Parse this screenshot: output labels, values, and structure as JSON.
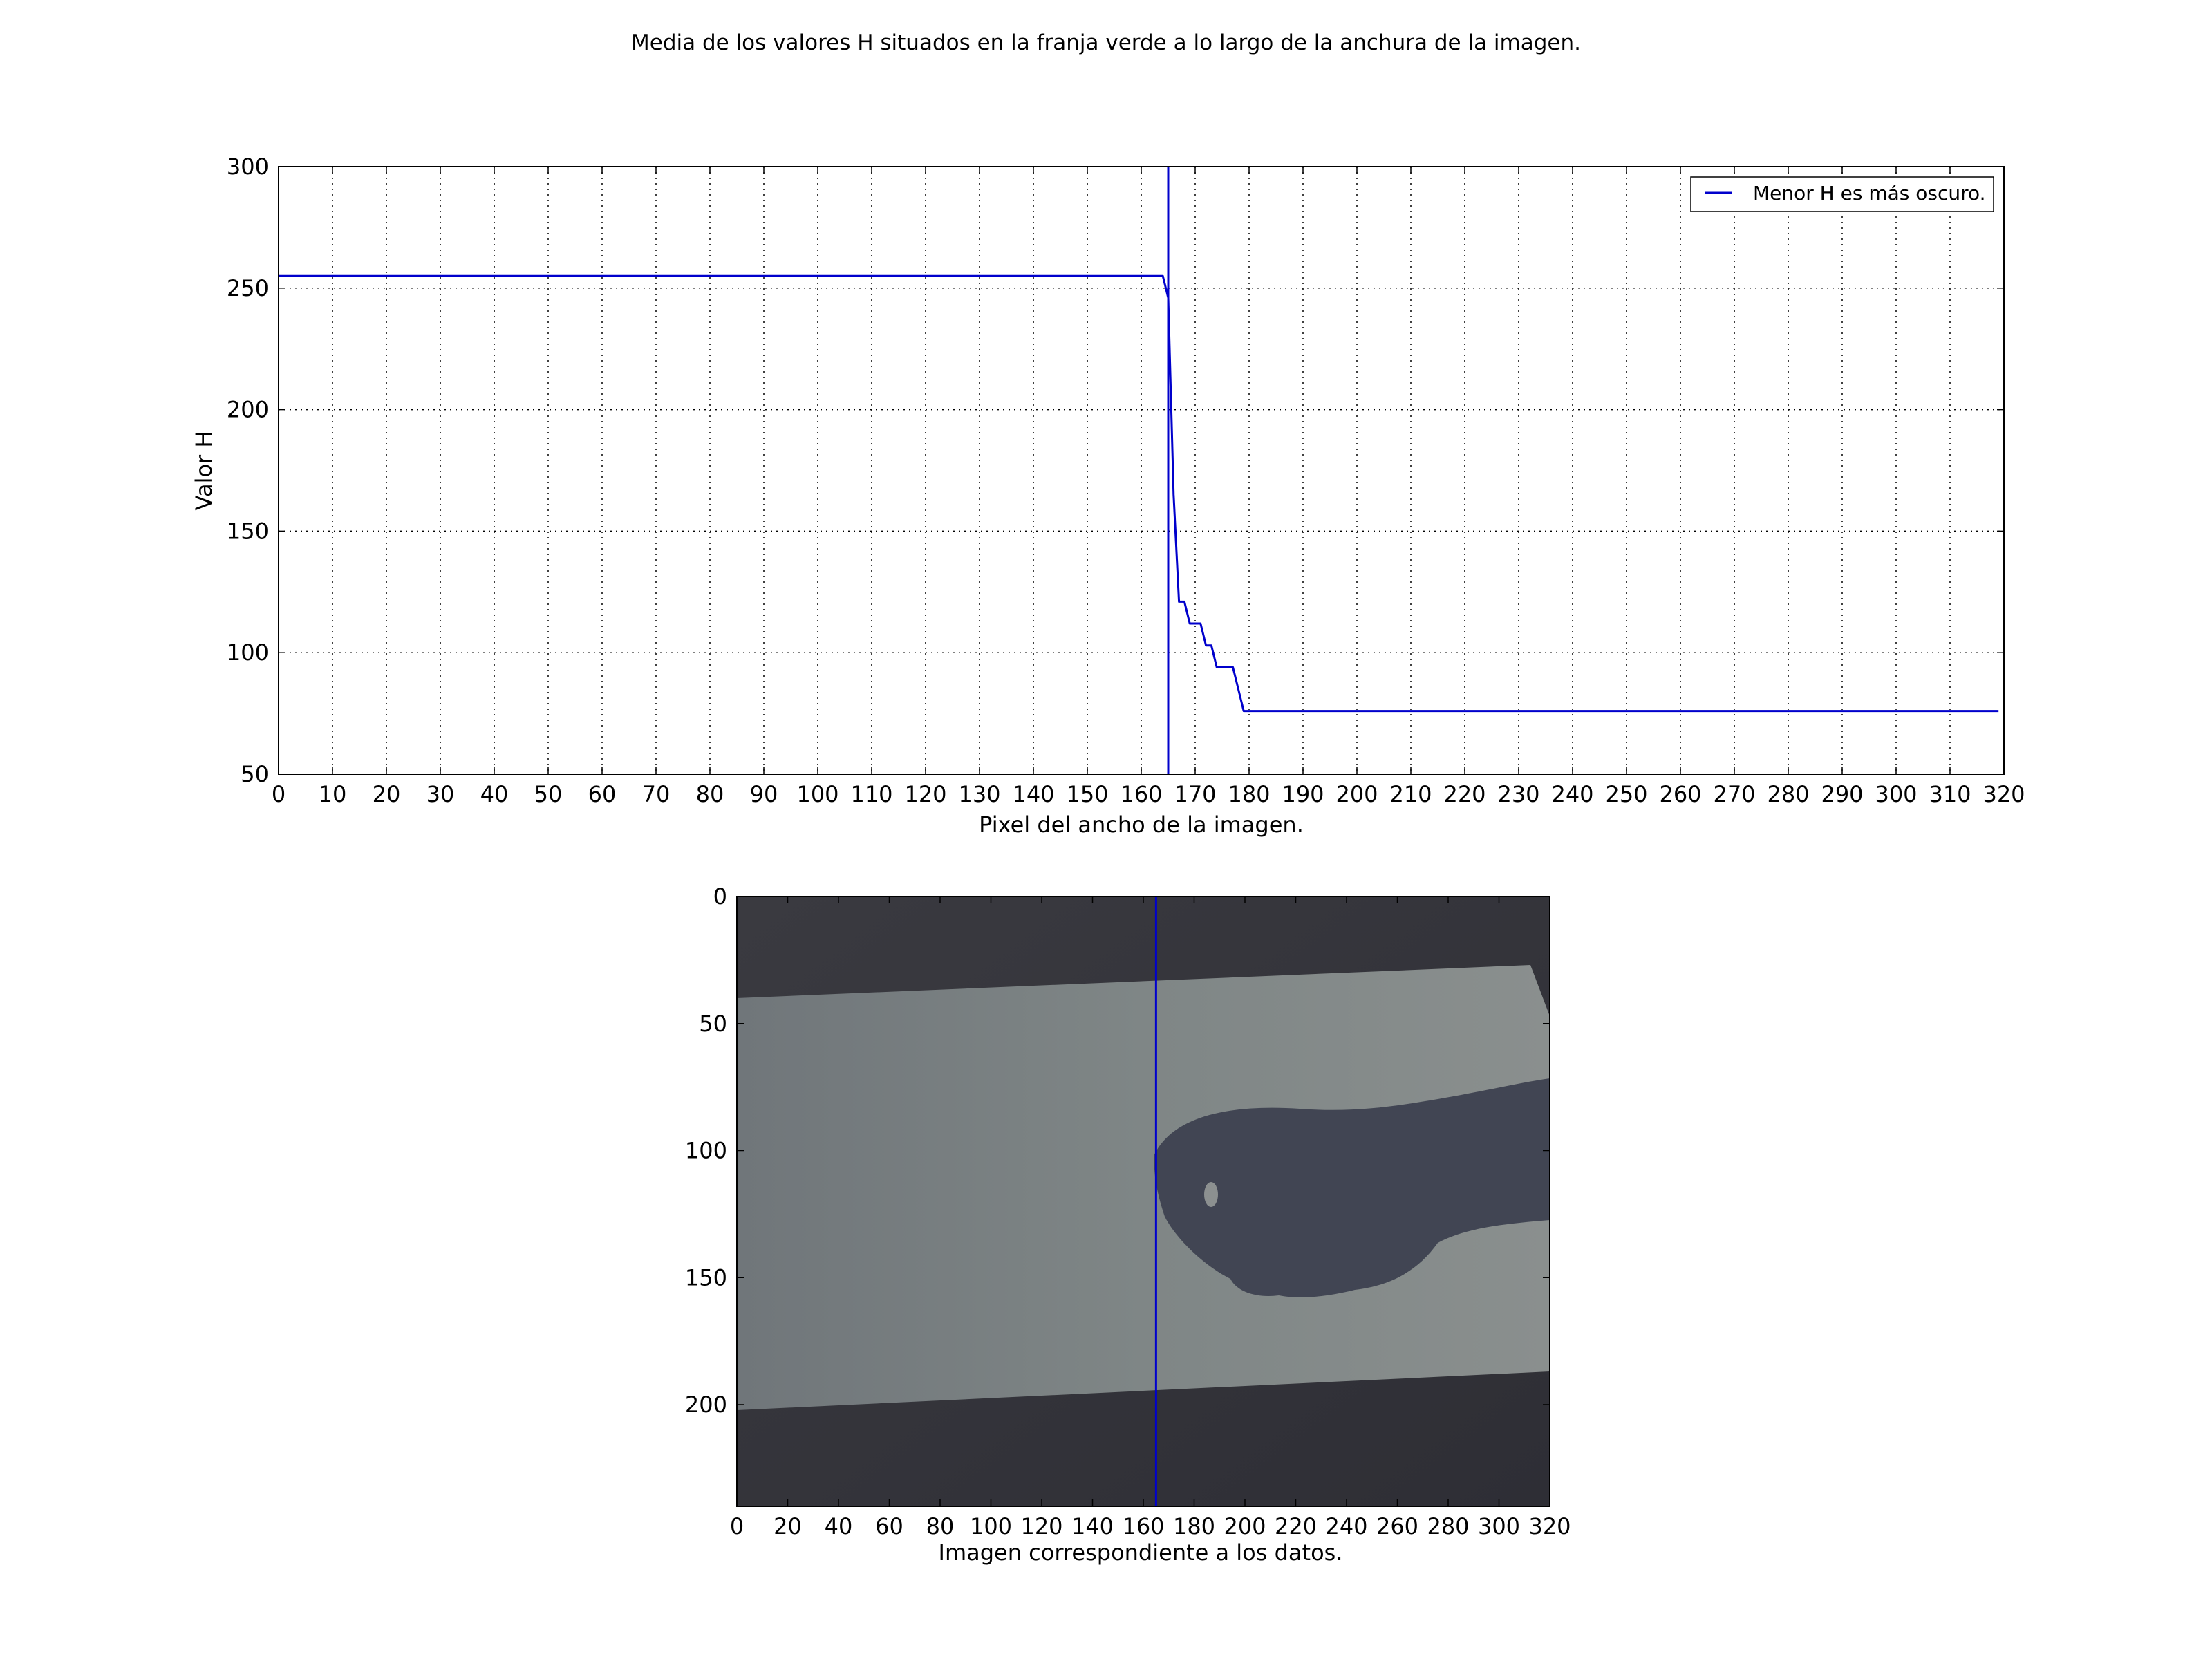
{
  "figure": {
    "title": "Media de los valores H situados en la franja verde a lo largo de la anchura de la imagen."
  },
  "chart_data": [
    {
      "type": "line",
      "xlabel": "Pixel del ancho de la imagen.",
      "ylabel": "Valor H",
      "xlim": [
        0,
        320
      ],
      "ylim": [
        50,
        300
      ],
      "xticks": [
        0,
        10,
        20,
        30,
        40,
        50,
        60,
        70,
        80,
        90,
        100,
        110,
        120,
        130,
        140,
        150,
        160,
        170,
        180,
        190,
        200,
        210,
        220,
        230,
        240,
        250,
        260,
        270,
        280,
        290,
        300,
        310,
        320
      ],
      "yticks": [
        50,
        100,
        150,
        200,
        250,
        300
      ],
      "grid": true,
      "legend_position": "top-right",
      "marker_x": 165,
      "series": [
        {
          "name": "Menor H es más oscuro.",
          "color": "#0000cc",
          "x": [
            0,
            164,
            165,
            166,
            167,
            168,
            169,
            170,
            171,
            172,
            173,
            174,
            175,
            176,
            177,
            178,
            179,
            180,
            250,
            319
          ],
          "y": [
            255,
            255,
            246,
            165,
            121,
            121,
            112,
            112,
            112,
            103,
            103,
            94,
            94,
            94,
            94,
            85,
            76,
            76,
            76,
            76
          ]
        }
      ]
    },
    {
      "type": "image",
      "xlabel": "Imagen correspondiente a los datos.",
      "xlim": [
        0,
        320
      ],
      "ylim": [
        240,
        0
      ],
      "xticks": [
        0,
        20,
        40,
        60,
        80,
        100,
        120,
        140,
        160,
        180,
        200,
        220,
        240,
        260,
        280,
        300,
        320
      ],
      "yticks": [
        0,
        50,
        100,
        150,
        200
      ],
      "marker_x": 165,
      "marker_color": "#0000cc"
    }
  ]
}
